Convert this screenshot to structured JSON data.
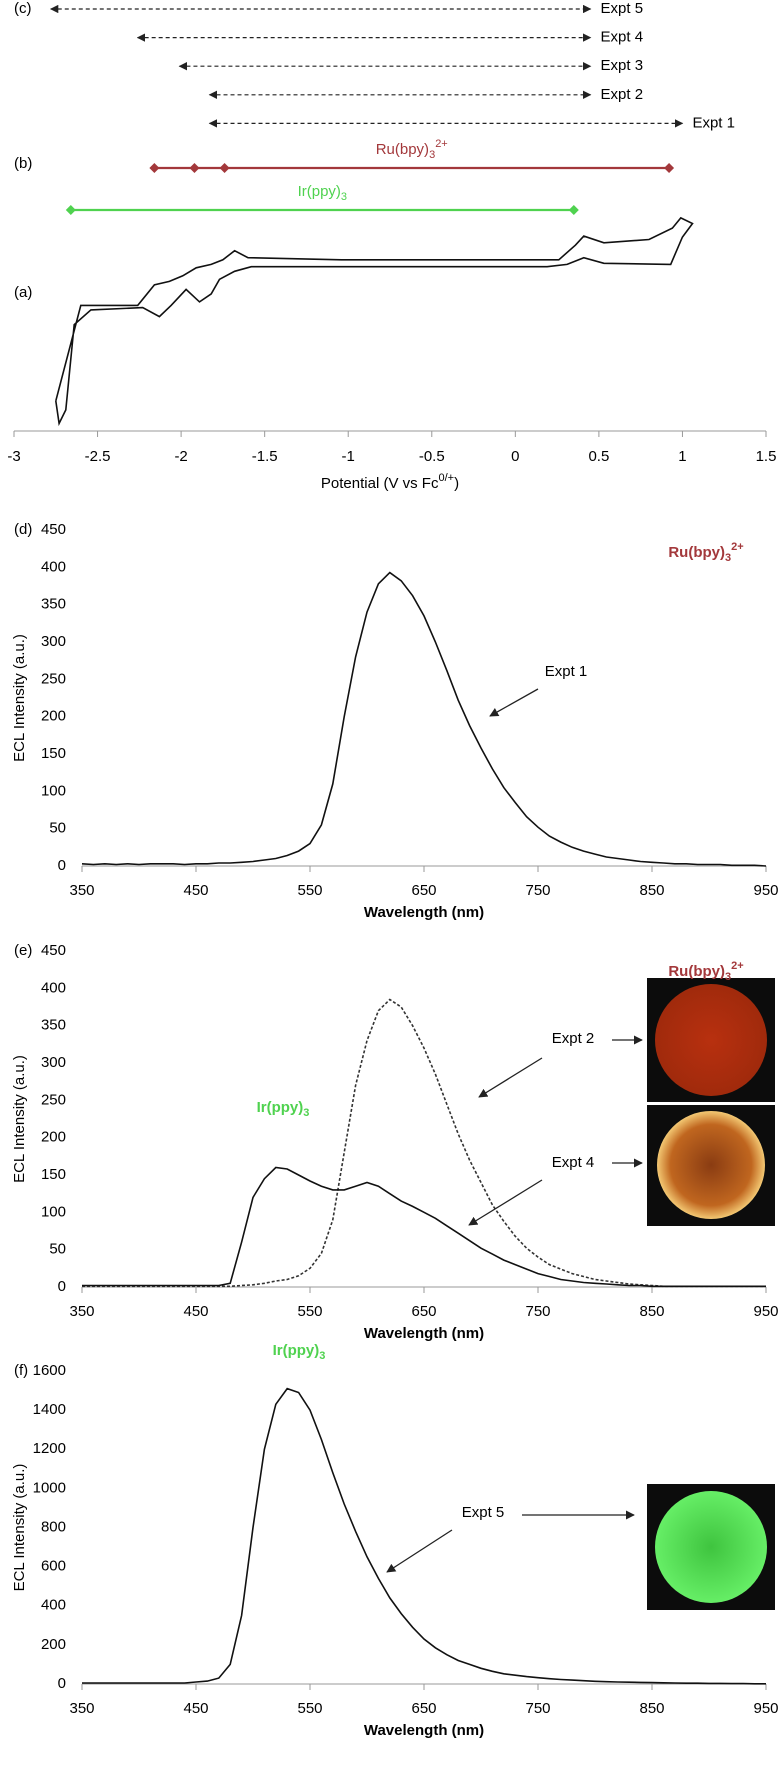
{
  "chart_data": [
    {
      "type": "potential",
      "panel_labels": {
        "c": "(c)",
        "b": "(b)",
        "a": "(a)"
      },
      "xlabel": {
        "text": "Potential (V vs Fc",
        "sup": "0/+",
        "tail": ")"
      },
      "xlim": [
        -3,
        1.5
      ],
      "xticks": [
        -3,
        -2.5,
        -2,
        -1.5,
        -1,
        -0.5,
        0,
        0.5,
        1,
        1.5
      ],
      "experiments": [
        {
          "name": "Expt 5",
          "start": -2.78,
          "end": 0.45
        },
        {
          "name": "Expt 4",
          "start": -2.26,
          "end": 0.45
        },
        {
          "name": "Expt 3",
          "start": -2.01,
          "end": 0.45
        },
        {
          "name": "Expt 2",
          "start": -1.83,
          "end": 0.45
        },
        {
          "name": "Expt 1",
          "start": -1.83,
          "end": 1.0
        }
      ],
      "couples": [
        {
          "label": {
            "text": "Ru(bpy)",
            "sub": "3",
            "sup": "2+"
          },
          "color": "#a3383b",
          "points": [
            -2.16,
            -1.92,
            -1.74,
            0.92
          ]
        },
        {
          "label": {
            "text": "Ir(ppy)",
            "sub": "3"
          },
          "color": "#4fd24f",
          "points": [
            -2.66,
            0.35
          ]
        }
      ],
      "ylim": [
        0,
        100
      ],
      "cv": {
        "x": [
          -2.75,
          -2.6,
          -2.26,
          -2.16,
          -2.07,
          -1.99,
          -1.91,
          -1.82,
          -1.75,
          -1.68,
          -1.6,
          -1.04,
          0.26,
          0.36,
          0.41,
          0.53,
          0.8,
          0.94,
          0.99,
          1.06,
          1.0,
          0.93,
          0.53,
          0.41,
          0.31,
          0.19,
          -1.58,
          -1.68,
          -1.77,
          -1.82,
          -1.89,
          -1.97,
          -2.06,
          -2.13,
          -2.23,
          -2.54,
          -2.64,
          -2.69,
          -2.73,
          -2.75
        ],
        "y": [
          12.1,
          56.3,
          56.3,
          65.8,
          67.4,
          70,
          73.7,
          75.3,
          77.4,
          81.6,
          78.4,
          77.4,
          77.4,
          84.2,
          88.4,
          85.3,
          86.8,
          92.1,
          96.8,
          94.2,
          87.9,
          75.3,
          75.8,
          78.4,
          75.3,
          74.2,
          74.2,
          72.1,
          68.4,
          61.6,
          57.9,
          63.7,
          56.3,
          51.1,
          55.3,
          54.2,
          47.4,
          7.9,
          1.6,
          12.1
        ]
      }
    },
    {
      "type": "line",
      "panel_label": "(d)",
      "xlabel": "Wavelength (nm)",
      "ylabel": "ECL Intensity (a.u.)",
      "x": [
        350,
        360,
        370,
        380,
        390,
        400,
        410,
        420,
        430,
        440,
        450,
        460,
        470,
        480,
        490,
        500,
        510,
        520,
        530,
        540,
        550,
        560,
        570,
        580,
        590,
        600,
        610,
        620,
        630,
        640,
        650,
        660,
        670,
        680,
        690,
        700,
        710,
        720,
        730,
        740,
        750,
        760,
        770,
        780,
        790,
        800,
        810,
        820,
        830,
        840,
        850,
        860,
        870,
        880,
        890,
        900,
        910,
        920,
        930,
        940,
        950
      ],
      "xlim": [
        350,
        950
      ],
      "xticks": [
        350,
        450,
        550,
        650,
        750,
        850,
        950
      ],
      "ylim": [
        0,
        450
      ],
      "yticks": [
        0,
        50,
        100,
        150,
        200,
        250,
        300,
        350,
        400,
        450
      ],
      "series": [
        {
          "name": "Expt 1",
          "color": "#111111",
          "dashed": false,
          "values": [
            3,
            2,
            3,
            2,
            3,
            2,
            3,
            3,
            3,
            2,
            3,
            3,
            4,
            4,
            5,
            6,
            8,
            10,
            14,
            20,
            30,
            55,
            110,
            200,
            280,
            340,
            378,
            393,
            382,
            362,
            335,
            300,
            262,
            222,
            188,
            158,
            130,
            105,
            85,
            66,
            52,
            40,
            32,
            25,
            20,
            16,
            12,
            10,
            8,
            6,
            5,
            4,
            3,
            3,
            2,
            2,
            2,
            1,
            1,
            1,
            0
          ]
        }
      ],
      "compound_labels": [
        {
          "text": "Ru(bpy)",
          "sub": "3",
          "sup": "2+",
          "color": "#a3383b"
        }
      ]
    },
    {
      "type": "line",
      "panel_label": "(e)",
      "xlabel": "Wavelength (nm)",
      "ylabel": "ECL Intensity (a.u.)",
      "x": [
        350,
        360,
        370,
        380,
        390,
        400,
        410,
        420,
        430,
        440,
        450,
        460,
        470,
        480,
        490,
        500,
        510,
        520,
        530,
        540,
        550,
        560,
        570,
        580,
        590,
        600,
        610,
        620,
        630,
        640,
        650,
        660,
        670,
        680,
        690,
        700,
        710,
        720,
        730,
        740,
        750,
        760,
        770,
        780,
        790,
        800,
        810,
        820,
        830,
        840,
        850,
        860,
        870,
        880,
        890,
        900,
        910,
        920,
        930,
        940,
        950
      ],
      "xlim": [
        350,
        950
      ],
      "xticks": [
        350,
        450,
        550,
        650,
        750,
        850,
        950
      ],
      "ylim": [
        0,
        450
      ],
      "yticks": [
        0,
        50,
        100,
        150,
        200,
        250,
        300,
        350,
        400,
        450
      ],
      "series": [
        {
          "name": "Expt 2",
          "color": "#333333",
          "dashed": true,
          "values": [
            1,
            1,
            1,
            1,
            1,
            1,
            1,
            1,
            1,
            1,
            1,
            1,
            1,
            1,
            2,
            3,
            5,
            8,
            10,
            15,
            25,
            45,
            90,
            180,
            270,
            330,
            370,
            385,
            375,
            350,
            320,
            285,
            245,
            205,
            170,
            140,
            110,
            88,
            68,
            52,
            40,
            30,
            24,
            18,
            14,
            10,
            8,
            6,
            4,
            3,
            2,
            1,
            1,
            1,
            1,
            1,
            1,
            1,
            1,
            1,
            1
          ]
        },
        {
          "name": "Expt 4",
          "color": "#111111",
          "dashed": false,
          "values": [
            2,
            2,
            2,
            2,
            2,
            2,
            2,
            2,
            2,
            2,
            2,
            2,
            2,
            5,
            60,
            120,
            145,
            160,
            158,
            150,
            142,
            135,
            130,
            130,
            135,
            140,
            135,
            125,
            115,
            108,
            100,
            92,
            82,
            72,
            62,
            52,
            44,
            36,
            30,
            24,
            18,
            14,
            10,
            8,
            6,
            5,
            4,
            3,
            2,
            2,
            1,
            1,
            1,
            1,
            1,
            1,
            1,
            1,
            1,
            1,
            1
          ]
        }
      ],
      "compound_labels": [
        {
          "text": "Ru(bpy)",
          "sub": "3",
          "sup": "2+",
          "color": "#a3383b"
        },
        {
          "text": "Ir(ppy)",
          "sub": "3",
          "color": "#4fd24f"
        }
      ]
    },
    {
      "type": "line",
      "panel_label": "(f)",
      "xlabel": "Wavelength (nm)",
      "ylabel": "ECL Intensity (a.u.)",
      "x": [
        350,
        360,
        370,
        380,
        390,
        400,
        410,
        420,
        430,
        440,
        450,
        460,
        470,
        480,
        490,
        500,
        510,
        520,
        530,
        540,
        550,
        560,
        570,
        580,
        590,
        600,
        610,
        620,
        630,
        640,
        650,
        660,
        670,
        680,
        690,
        700,
        710,
        720,
        730,
        740,
        750,
        760,
        770,
        780,
        790,
        800,
        810,
        820,
        830,
        840,
        850,
        860,
        870,
        880,
        890,
        900,
        910,
        920,
        930,
        940,
        950
      ],
      "xlim": [
        350,
        950
      ],
      "xticks": [
        350,
        450,
        550,
        650,
        750,
        850,
        950
      ],
      "ylim": [
        0,
        1600
      ],
      "yticks": [
        0,
        200,
        400,
        600,
        800,
        1000,
        1200,
        1400,
        1600
      ],
      "series": [
        {
          "name": "Expt 5",
          "color": "#111111",
          "dashed": false,
          "values": [
            5,
            5,
            5,
            5,
            5,
            5,
            5,
            5,
            5,
            5,
            10,
            15,
            30,
            100,
            350,
            800,
            1200,
            1430,
            1510,
            1490,
            1400,
            1250,
            1080,
            920,
            780,
            650,
            540,
            440,
            360,
            290,
            230,
            185,
            150,
            120,
            100,
            80,
            65,
            52,
            45,
            38,
            32,
            27,
            23,
            20,
            17,
            14,
            12,
            10,
            9,
            8,
            7,
            6,
            5,
            4,
            4,
            3,
            3,
            2,
            2,
            1,
            1
          ]
        }
      ],
      "compound_labels": [
        {
          "text": "Ir(ppy)",
          "sub": "3",
          "color": "#4fd24f"
        }
      ]
    }
  ]
}
